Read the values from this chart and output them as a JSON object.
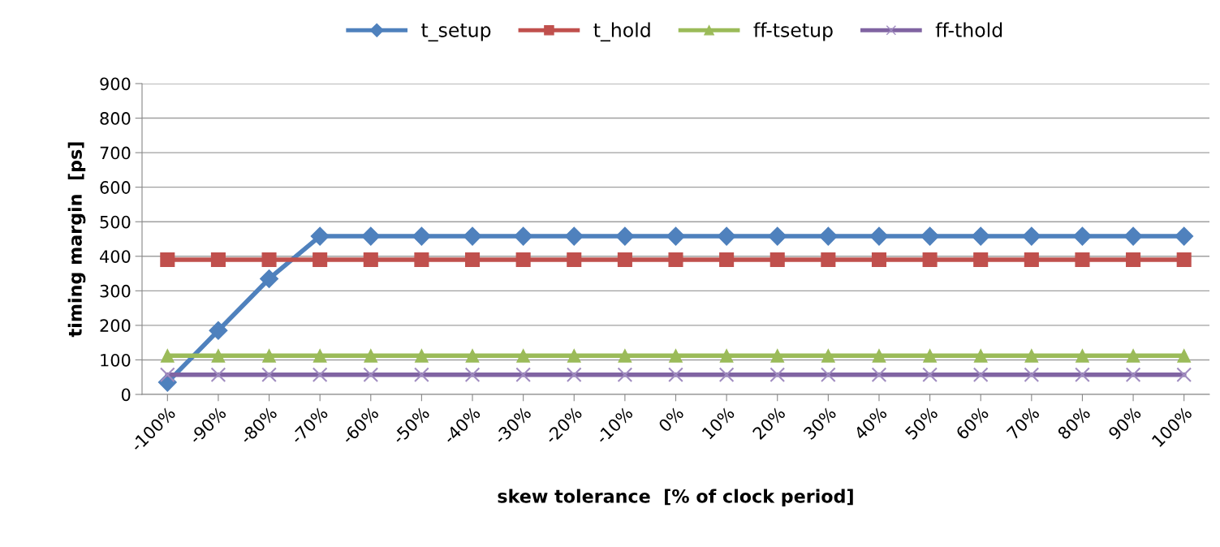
{
  "chart_data": {
    "type": "line",
    "xlabel": "skew tolerance  [% of clock period]",
    "ylabel": "timing margin  [ps]",
    "categories": [
      "-100%",
      "-90%",
      "-80%",
      "-70%",
      "-60%",
      "-50%",
      "-40%",
      "-30%",
      "-20%",
      "-10%",
      "0%",
      "10%",
      "20%",
      "30%",
      "40%",
      "50%",
      "60%",
      "70%",
      "80%",
      "90%",
      "100%"
    ],
    "series": [
      {
        "name": "t_setup",
        "color": "#4f81bd",
        "marker": "diamond",
        "values": [
          35,
          185,
          335,
          458,
          458,
          458,
          458,
          458,
          458,
          458,
          458,
          458,
          458,
          458,
          458,
          458,
          458,
          458,
          458,
          458,
          458
        ]
      },
      {
        "name": "t_hold",
        "color": "#c0504d",
        "marker": "square",
        "values": [
          390,
          390,
          390,
          390,
          390,
          390,
          390,
          390,
          390,
          390,
          390,
          390,
          390,
          390,
          390,
          390,
          390,
          390,
          390,
          390,
          390
        ]
      },
      {
        "name": "ff-tsetup",
        "color": "#9bbb59",
        "marker": "triangle",
        "values": [
          112,
          112,
          112,
          112,
          112,
          112,
          112,
          112,
          112,
          112,
          112,
          112,
          112,
          112,
          112,
          112,
          112,
          112,
          112,
          112,
          112
        ]
      },
      {
        "name": "ff-thold",
        "color": "#8064a2",
        "marker": "cross",
        "values": [
          57,
          57,
          57,
          57,
          57,
          57,
          57,
          57,
          57,
          57,
          57,
          57,
          57,
          57,
          57,
          57,
          57,
          57,
          57,
          57,
          57
        ]
      }
    ],
    "ylim": [
      0,
      900
    ],
    "yticks": [
      0,
      100,
      200,
      300,
      400,
      500,
      600,
      700,
      800,
      900
    ],
    "grid": "y",
    "legend": "top",
    "line_style": "solid"
  }
}
